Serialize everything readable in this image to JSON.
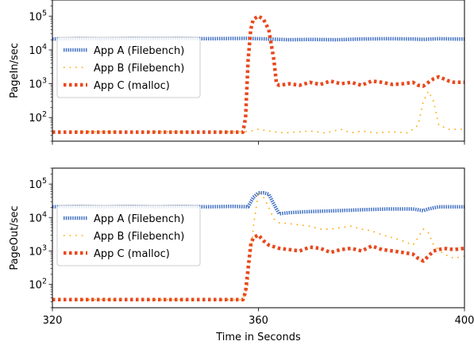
{
  "chart_data": [
    {
      "type": "line",
      "ylabel": "PageIn/sec",
      "yscale": "log",
      "ylim": [
        20,
        300000
      ],
      "yticks": [
        {
          "value": 100,
          "base": "10",
          "exp": "2"
        },
        {
          "value": 1000,
          "base": "10",
          "exp": "3"
        },
        {
          "value": 10000,
          "base": "10",
          "exp": "4"
        },
        {
          "value": 100000,
          "base": "10",
          "exp": "5"
        }
      ],
      "xlim": [
        320,
        400
      ],
      "legend": "upper-left",
      "series": [
        {
          "name": "App A (Filebench)",
          "color": "#4472c4",
          "style": "dense-dots",
          "x": [
            320,
            325,
            330,
            335,
            340,
            345,
            350,
            355,
            358,
            362,
            366,
            370,
            375,
            380,
            385,
            390,
            392,
            395,
            398,
            400
          ],
          "y": [
            21000,
            22000,
            21500,
            22000,
            21800,
            22000,
            21500,
            21800,
            22000,
            21000,
            20000,
            20500,
            20000,
            21000,
            21500,
            21000,
            20500,
            21500,
            21000,
            21000
          ]
        },
        {
          "name": "App B (Filebench)",
          "color": "#ffa500",
          "style": "sparse-dots",
          "x": [
            320,
            325,
            330,
            335,
            340,
            345,
            350,
            355,
            358,
            360,
            362,
            365,
            368,
            370,
            373,
            376,
            378,
            380,
            383,
            386,
            389,
            391,
            392,
            393,
            394,
            395,
            397,
            400
          ],
          "y": [
            38,
            38,
            38,
            38,
            38,
            38,
            38,
            38,
            38,
            45,
            40,
            35,
            38,
            40,
            35,
            45,
            35,
            40,
            35,
            38,
            35,
            60,
            300,
            600,
            300,
            60,
            45,
            45
          ]
        },
        {
          "name": "App C (malloc)",
          "color": "#e8491e",
          "style": "bold-dots",
          "x": [
            320,
            330,
            340,
            350,
            357,
            357.5,
            358,
            358.5,
            359,
            360,
            361,
            362,
            363,
            363.5,
            364,
            366,
            368,
            370,
            372,
            374,
            376,
            378,
            380,
            382,
            384,
            386,
            388,
            390,
            391,
            392,
            393,
            394,
            395,
            396,
            397,
            398,
            400
          ],
          "y": [
            37,
            37,
            37,
            37,
            37,
            100,
            5000,
            40000,
            80000,
            100000,
            80000,
            40000,
            5000,
            1000,
            900,
            1000,
            900,
            1100,
            950,
            1200,
            1000,
            1100,
            900,
            1200,
            1100,
            950,
            1000,
            1100,
            900,
            850,
            1100,
            1400,
            1600,
            1400,
            1200,
            1100,
            1100
          ]
        }
      ]
    },
    {
      "type": "line",
      "xlabel": "Time in Seconds",
      "ylabel": "PageOut/sec",
      "yscale": "log",
      "ylim": [
        20,
        300000
      ],
      "yticks": [
        {
          "value": 100,
          "base": "10",
          "exp": "2"
        },
        {
          "value": 1000,
          "base": "10",
          "exp": "3"
        },
        {
          "value": 10000,
          "base": "10",
          "exp": "4"
        },
        {
          "value": 100000,
          "base": "10",
          "exp": "5"
        }
      ],
      "xlim": [
        320,
        400
      ],
      "xticks": [
        320,
        360,
        400
      ],
      "legend": "upper-left",
      "series": [
        {
          "name": "App A (Filebench)",
          "color": "#4472c4",
          "style": "dense-dots",
          "x": [
            320,
            325,
            330,
            335,
            340,
            345,
            350,
            355,
            358,
            359,
            360,
            361,
            362,
            363,
            364,
            366,
            370,
            375,
            380,
            385,
            390,
            391,
            392,
            393,
            395,
            398,
            400
          ],
          "y": [
            21000,
            21500,
            21000,
            21500,
            21000,
            21500,
            21000,
            21500,
            21000,
            40000,
            55000,
            55000,
            50000,
            25000,
            13000,
            14000,
            15000,
            16000,
            17000,
            18000,
            18000,
            17000,
            16000,
            18000,
            21000,
            21000,
            21000
          ]
        },
        {
          "name": "App B (Filebench)",
          "color": "#ffa500",
          "style": "sparse-dots",
          "x": [
            320,
            330,
            340,
            350,
            357,
            358,
            359,
            360,
            361,
            362,
            363,
            364,
            366,
            368,
            370,
            372,
            374,
            376,
            378,
            380,
            382,
            384,
            386,
            388,
            390,
            391,
            392,
            393,
            394,
            396,
            398,
            400
          ],
          "y": [
            35,
            35,
            35,
            35,
            35,
            100,
            5000,
            60000,
            40000,
            20000,
            9000,
            7000,
            6500,
            6000,
            5500,
            4500,
            4500,
            5000,
            5500,
            4500,
            4000,
            3000,
            2500,
            2000,
            1500,
            2500,
            4500,
            3500,
            1500,
            800,
            600,
            700
          ]
        },
        {
          "name": "App C (malloc)",
          "color": "#e8491e",
          "style": "bold-dots",
          "x": [
            320,
            330,
            340,
            350,
            357,
            357.5,
            358,
            358.5,
            359,
            360,
            361,
            362,
            364,
            366,
            368,
            370,
            372,
            374,
            376,
            378,
            380,
            382,
            384,
            386,
            388,
            390,
            391,
            392,
            393,
            394,
            396,
            398,
            400
          ],
          "y": [
            35,
            35,
            35,
            35,
            35,
            60,
            300,
            1500,
            2500,
            3000,
            2000,
            1500,
            1200,
            1100,
            1000,
            1300,
            1200,
            900,
            1100,
            1200,
            1000,
            1400,
            1100,
            1000,
            900,
            800,
            600,
            500,
            700,
            1000,
            1200,
            1100,
            1200
          ]
        }
      ]
    }
  ]
}
